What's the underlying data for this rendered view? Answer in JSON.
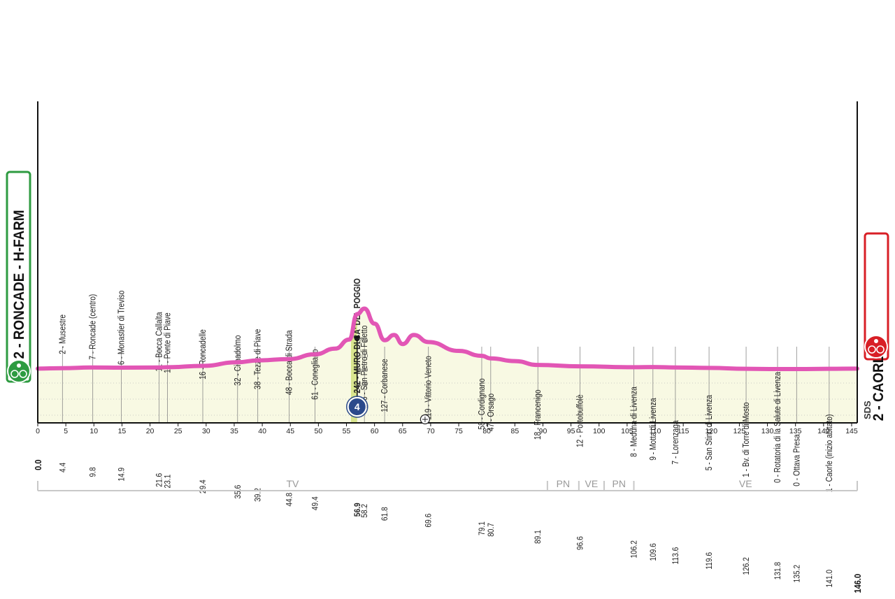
{
  "chart_data": {
    "type": "area",
    "xlim": [
      0,
      146
    ],
    "ylim": [
      0,
      500
    ],
    "x_ticks": [
      0,
      5,
      10,
      15,
      20,
      25,
      30,
      35,
      40,
      45,
      50,
      55,
      60,
      65,
      70,
      75,
      80,
      85,
      90,
      95,
      100,
      105,
      110,
      115,
      120,
      125,
      130,
      135,
      140,
      145
    ],
    "altitude_scale_labels": [
      "200",
      "100",
      "100",
      "100"
    ],
    "profile": {
      "x": [
        0,
        4.4,
        9.8,
        14.9,
        21.6,
        23.1,
        29.4,
        35.6,
        39.2,
        44.8,
        49.4,
        53,
        55.5,
        56.9,
        58.2,
        60,
        61.8,
        63.5,
        65,
        67,
        69.6,
        75,
        79.1,
        80.7,
        85,
        89.1,
        96.6,
        106.2,
        109.6,
        113.6,
        119.6,
        126.2,
        131.8,
        135.2,
        141.0,
        146.0
      ],
      "y": [
        2,
        4,
        7,
        6,
        7,
        8,
        14,
        30,
        38,
        44,
        65,
        90,
        130,
        242,
        266,
        200,
        127,
        150,
        110,
        150,
        119,
        80,
        58,
        47,
        35,
        18,
        12,
        8,
        9,
        7,
        5,
        1,
        0,
        0,
        1,
        2
      ]
    },
    "start": {
      "label": "2 - RONCADE - H-FARM"
    },
    "finish": {
      "label": "2 - CAORLE"
    },
    "waypoints": [
      {
        "km": 4.4,
        "km_label": "4.4",
        "label": "2 - Musestre"
      },
      {
        "km": 9.8,
        "km_label": "9.8",
        "label": "7 - Roncade (centro)"
      },
      {
        "km": 14.9,
        "km_label": "14.9",
        "label": "6 - Monastier di Treviso"
      },
      {
        "km": 21.6,
        "km_label": "21.6",
        "label": "11 - Bocca Callalta"
      },
      {
        "km": 23.1,
        "km_label": "23.1",
        "label": "10 - Ponte di Piave"
      },
      {
        "km": 29.4,
        "km_label": "29.4",
        "label": "16 - Roncadelle"
      },
      {
        "km": 35.6,
        "km_label": "35.6",
        "label": "32 - Cimadolmo"
      },
      {
        "km": 39.2,
        "km_label": "39.2",
        "label": "38 - Tezze di Piave"
      },
      {
        "km": 44.8,
        "km_label": "44.8",
        "label": "48 - Bocca di Strada"
      },
      {
        "km": 49.4,
        "km_label": "49.4",
        "label": "61 - Conegliano"
      },
      {
        "km": 56.9,
        "km_label": "56.9",
        "label": "242 - MURO DI CA' DEL POGGIO",
        "bold": true
      },
      {
        "km": 58.2,
        "km_label": "58.2",
        "label": "266 - San Pietro di Feletto"
      },
      {
        "km": 61.8,
        "km_label": "61.8",
        "label": "127 - Corbanese"
      },
      {
        "km": 69.6,
        "km_label": "69.6",
        "label": "119 - Vittorio Veneto"
      },
      {
        "km": 79.1,
        "km_label": "79.1",
        "label": "58 - Cordignano"
      },
      {
        "km": 80.7,
        "km_label": "80.7",
        "label": "47 - Orsago"
      },
      {
        "km": 89.1,
        "km_label": "89.1",
        "label": "18 - Francenigo"
      },
      {
        "km": 96.6,
        "km_label": "96.6",
        "label": "12 - Portobuffolè"
      },
      {
        "km": 106.2,
        "km_label": "106.2",
        "label": "8 - Meduna di Livenza"
      },
      {
        "km": 109.6,
        "km_label": "109.6",
        "label": "9 - Motta di Livenza"
      },
      {
        "km": 113.6,
        "km_label": "113.6",
        "label": "7 - Lorenzaga"
      },
      {
        "km": 119.6,
        "km_label": "119.6",
        "label": "5 - San Stino di Livenza"
      },
      {
        "km": 126.2,
        "km_label": "126.2",
        "label": "1 - Bv. di Torre di Mosto"
      },
      {
        "km": 131.8,
        "km_label": "131.8",
        "label": "0 - Rotatoria di la Salute di Livenza"
      },
      {
        "km": 135.2,
        "km_label": "135.2",
        "label": "0 - Ottava Presa"
      },
      {
        "km": 141.0,
        "km_label": "141.0",
        "label": "1 - Caorle (inizio abitato)"
      }
    ],
    "end_km_labels": {
      "start": "0.0",
      "finish": "146.0"
    },
    "climb_category": "4",
    "provinces": [
      {
        "from": 0,
        "to": 90.8,
        "label": "TV"
      },
      {
        "from": 90.8,
        "to": 96.4,
        "label": "PN"
      },
      {
        "from": 96.4,
        "to": 100.9,
        "label": "VE"
      },
      {
        "from": 100.9,
        "to": 106.2,
        "label": "PN"
      },
      {
        "from": 106.2,
        "to": 146,
        "label": "VE"
      }
    ],
    "sprint_km": 69,
    "brand": "SDS",
    "colors": {
      "profile_line": "#e256b5",
      "area_fill": "#f8f9e3",
      "climb_fill": "#d9e58e",
      "start": "#2e9b41",
      "finish": "#d81f26",
      "climb_badge": "#2b4a8b",
      "text": "#222222"
    }
  }
}
